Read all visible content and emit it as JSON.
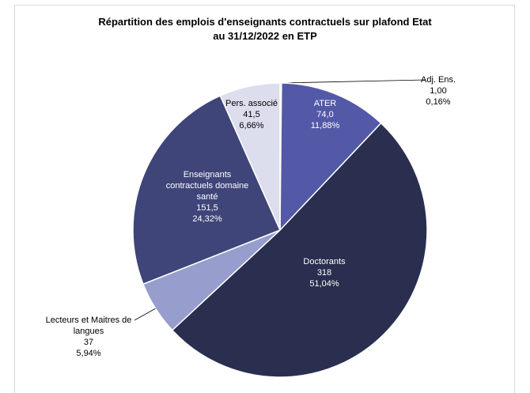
{
  "chart_data": {
    "type": "pie",
    "title": [
      "Répartition des emplois d'enseignants contractuels sur plafond Etat",
      "au 31/12/2022 en ETP"
    ],
    "categories": [
      "Adj. Ens.",
      "ATER",
      "Doctorants",
      "Lecteurs et Maitres de langues",
      "Enseignants contractuels domaine santé",
      "Pers. associé"
    ],
    "values": [
      1.0,
      74.0,
      318,
      37,
      151.5,
      41.5
    ],
    "value_labels": [
      "1,00",
      "74,0",
      "318",
      "37",
      "151,5",
      "41,5"
    ],
    "percentages": [
      0.16,
      11.88,
      51.04,
      5.94,
      24.32,
      6.66
    ],
    "percentage_labels": [
      "0,16%",
      "11,88%",
      "51,04%",
      "5,94%",
      "24,32%",
      "6,66%"
    ],
    "colors": [
      "#c9cce6",
      "#5359a6",
      "#2a2e4f",
      "#979dcd",
      "#3f4479",
      "#dcdeee"
    ]
  }
}
